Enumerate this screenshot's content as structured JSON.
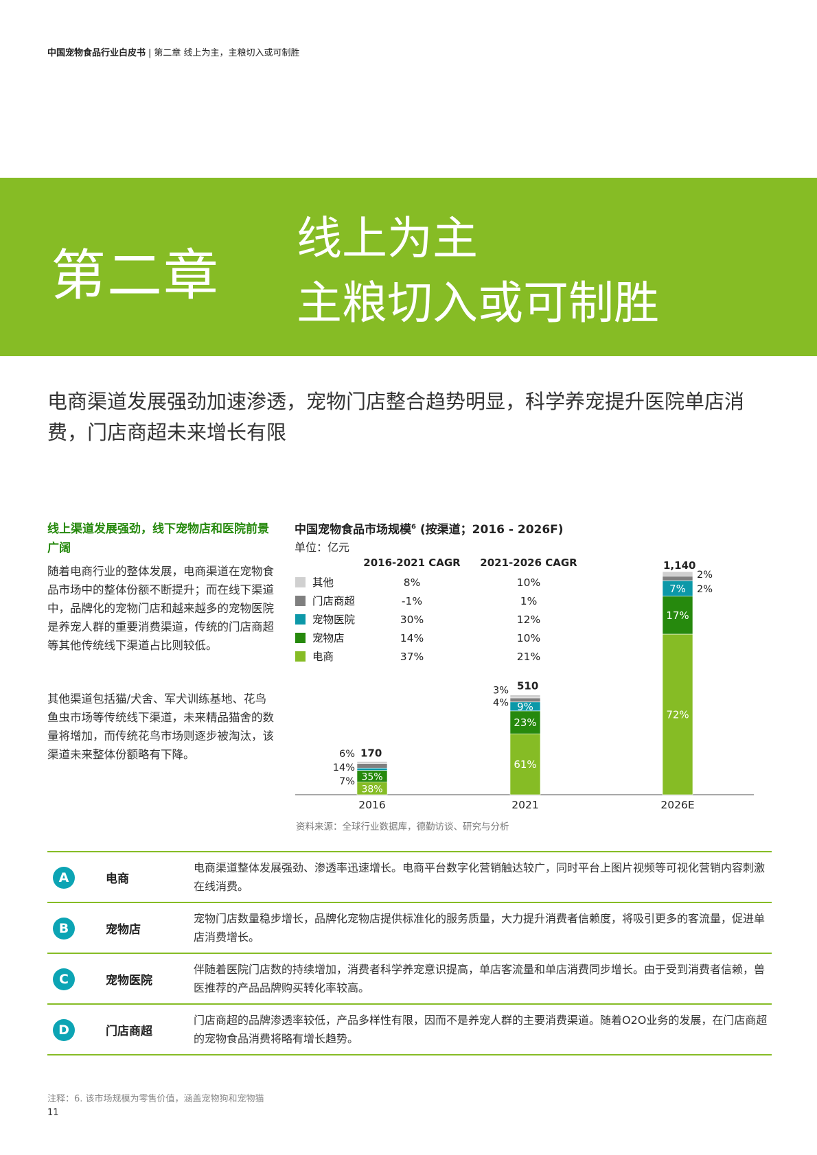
{
  "breadcrumb": {
    "report": "中国宠物食品行业白皮书",
    "separator": "|",
    "chapter": "第二章 线上为主，主粮切入或可制胜"
  },
  "banner": {
    "chapter_no": "第二章",
    "title_line1": "线上为主",
    "title_line2": "主粮切入或可制胜",
    "color": "#86bc25"
  },
  "lead": "电商渠道发展强劲加速渗透，宠物门店整合趋势明显，科学养宠提升医院单店消费，门店商超未来增长有限",
  "side": {
    "heading": "线上渠道发展强劲，线下宠物店和医院前景广阔",
    "para1": "随着电商行业的整体发展，电商渠道在宠物食品市场中的整体份额不断提升；而在线下渠道中，品牌化的宠物门店和越来越多的宠物医院是养宠人群的重要消费渠道，传统的门店商超等其他传统线下渠道占比则较低。",
    "para2": "其他渠道包括猫/犬舍、军犬训练基地、花鸟鱼虫市场等传统线下渠道，未来精品猫舍的数量将增加，而传统花鸟市场则逐步被淘汰，该渠道未来整体份额略有下降。"
  },
  "chart": {
    "title": "中国宠物食品市场规模",
    "title_sup": "6",
    "title_suffix": " (按渠道；2016 - 2026F)",
    "unit": "单位：亿元",
    "source": "资料来源：全球行业数据库，德勤访谈、研究与分析"
  },
  "chart_data": {
    "type": "bar",
    "stacked": true,
    "categories": [
      "2016",
      "2021",
      "2026E"
    ],
    "totals": [
      170,
      510,
      1140
    ],
    "total_labels": [
      "170",
      "510",
      "1,140"
    ],
    "cagr_headers": [
      "2016-2021 CAGR",
      "2021-2026 CAGR"
    ],
    "series": [
      {
        "name": "电商",
        "color": "#86bc25",
        "share_pct": [
          38,
          61,
          72
        ],
        "share_labels": [
          "38%",
          "61%",
          "72%"
        ],
        "cagr": [
          "37%",
          "21%"
        ]
      },
      {
        "name": "宠物店",
        "color": "#26890d",
        "share_pct": [
          35,
          23,
          17
        ],
        "share_labels": [
          "35%",
          "23%",
          "17%"
        ],
        "cagr": [
          "14%",
          "10%"
        ]
      },
      {
        "name": "宠物医院",
        "color": "#0c98a8",
        "share_pct": [
          7,
          9,
          7
        ],
        "share_labels": [
          "7%",
          "9%",
          "7%"
        ],
        "cagr": [
          "30%",
          "12%"
        ]
      },
      {
        "name": "门店商超",
        "color": "#7f7f7f",
        "share_pct": [
          14,
          4,
          2
        ],
        "share_labels": [
          "14%",
          "4%",
          "2%"
        ],
        "cagr": [
          "-1%",
          "1%"
        ]
      },
      {
        "name": "其他",
        "color": "#d0d0d0",
        "share_pct": [
          6,
          3,
          2
        ],
        "share_labels": [
          "6%",
          "3%",
          "2%"
        ],
        "cagr": [
          "8%",
          "10%"
        ]
      }
    ],
    "legend_order": [
      "其他",
      "门店商超",
      "宠物医院",
      "宠物店",
      "电商"
    ],
    "legend": "top-left",
    "grid": false
  },
  "channels": [
    {
      "badge": "A",
      "name": "电商",
      "desc": "电商渠道整体发展强劲、渗透率迅速增长。电商平台数字化营销触达较广，同时平台上图片视频等可视化营销内容刺激在线消费。"
    },
    {
      "badge": "B",
      "name": "宠物店",
      "desc": "宠物门店数量稳步增长，品牌化宠物店提供标准化的服务质量，大力提升消费者信赖度，将吸引更多的客流量，促进单店消费增长。"
    },
    {
      "badge": "C",
      "name": "宠物医院",
      "desc": "伴随着医院门店数的持续增加，消费者科学养宠意识提高，单店客流量和单店消费同步增长。由于受到消费者信赖，兽医推荐的产品品牌购买转化率较高。"
    },
    {
      "badge": "D",
      "name": "门店商超",
      "desc": "门店商超的品牌渗透率较低，产品多样性有限，因而不是养宠人群的主要消费渠道。随着O2O业务的发展，在门店商超的宠物食品消费将略有增长趋势。"
    }
  ],
  "footnote": "注释：6. 该市场规模为零售价值，涵盖宠物狗和宠物猫",
  "page_number": "11"
}
